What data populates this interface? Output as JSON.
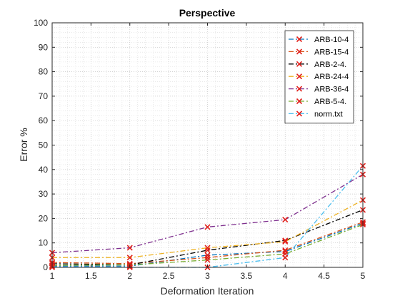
{
  "chart_data": {
    "type": "line",
    "title": "Perspective",
    "xlabel": "Deformation Iteration",
    "ylabel": "Error %",
    "xlim": [
      1,
      5
    ],
    "ylim": [
      0,
      100
    ],
    "x_ticks": [
      "1",
      "1.5",
      "2",
      "2.5",
      "3",
      "3.5",
      "4",
      "4.5",
      "5"
    ],
    "y_ticks": [
      "0",
      "10",
      "20",
      "30",
      "40",
      "50",
      "60",
      "70",
      "80",
      "90",
      "100"
    ],
    "grid": "on (major and minor, dotted)",
    "legend_position": "top-right",
    "marker": "x",
    "marker_color": "#e0201b",
    "x": [
      1,
      2,
      3,
      4,
      5
    ],
    "series": [
      {
        "name": "ARB-10-4",
        "color": "#0072bd",
        "dash": "dash-dot",
        "values": [
          0.5,
          0.5,
          5.0,
          6.5,
          18.0
        ]
      },
      {
        "name": "ARB-15-4",
        "color": "#d95319",
        "dash": "dash-dot",
        "values": [
          2.0,
          1.5,
          4.0,
          7.0,
          18.5
        ]
      },
      {
        "name": "ARB-2-4.",
        "color": "#000000",
        "dash": "dash-dot",
        "values": [
          1.5,
          1.0,
          7.0,
          11.0,
          23.5
        ]
      },
      {
        "name": "ARB-24-4",
        "color": "#edb120",
        "dash": "dash-dot",
        "values": [
          4.0,
          4.0,
          8.0,
          10.5,
          27.5
        ]
      },
      {
        "name": "ARB-36-4",
        "color": "#7e2f8e",
        "dash": "dash-dot",
        "values": [
          6.0,
          8.0,
          16.5,
          19.5,
          38.0
        ]
      },
      {
        "name": "ARB-5-4.",
        "color": "#77ac30",
        "dash": "dash-dot",
        "values": [
          0.8,
          1.0,
          3.0,
          5.5,
          17.5
        ]
      },
      {
        "name": "norm.txt",
        "color": "#4dbeee",
        "dash": "dash-dot",
        "values": [
          0.0,
          0.0,
          0.0,
          4.0,
          41.5
        ]
      }
    ]
  }
}
